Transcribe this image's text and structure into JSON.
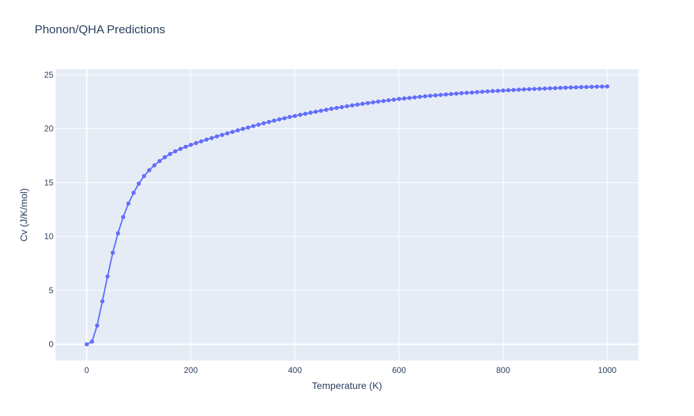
{
  "chart_data": {
    "type": "line",
    "title": "Phonon/QHA Predictions",
    "xlabel": "Temperature (K)",
    "ylabel": "Cv (J/K/mol)",
    "xlim": [
      -60,
      1060
    ],
    "ylim": [
      -1.5,
      25.5
    ],
    "x_ticks": [
      0,
      200,
      400,
      600,
      800,
      1000
    ],
    "y_ticks": [
      0,
      5,
      10,
      15,
      20,
      25
    ],
    "grid": true,
    "colors": {
      "series": "#636efa",
      "plot_bg": "#e5ecf6",
      "grid": "#ffffff",
      "text": "#2a3f5f"
    },
    "series": [
      {
        "mode": "lines+markers",
        "x": [
          0,
          10,
          20,
          30,
          40,
          50,
          60,
          70,
          80,
          90,
          100,
          110,
          120,
          130,
          140,
          150,
          160,
          170,
          180,
          190,
          200,
          210,
          220,
          230,
          240,
          250,
          260,
          270,
          280,
          290,
          300,
          310,
          320,
          330,
          340,
          350,
          360,
          370,
          380,
          390,
          400,
          410,
          420,
          430,
          440,
          450,
          460,
          470,
          480,
          490,
          500,
          510,
          520,
          530,
          540,
          550,
          560,
          570,
          580,
          590,
          600,
          610,
          620,
          630,
          640,
          650,
          660,
          670,
          680,
          690,
          700,
          710,
          720,
          730,
          740,
          750,
          760,
          770,
          780,
          790,
          800,
          810,
          820,
          830,
          840,
          850,
          860,
          870,
          880,
          890,
          900,
          910,
          920,
          930,
          940,
          950,
          960,
          970,
          980,
          990,
          1000
        ],
        "y": [
          0,
          0.25,
          1.75,
          4.0,
          6.3,
          8.5,
          10.3,
          11.8,
          13.05,
          14.05,
          14.9,
          15.6,
          16.15,
          16.6,
          17.0,
          17.35,
          17.65,
          17.9,
          18.12,
          18.32,
          18.5,
          18.66,
          18.82,
          18.98,
          19.13,
          19.28,
          19.42,
          19.56,
          19.7,
          19.84,
          19.98,
          20.11,
          20.24,
          20.37,
          20.5,
          20.62,
          20.74,
          20.86,
          20.97,
          21.08,
          21.18,
          21.28,
          21.38,
          21.48,
          21.57,
          21.66,
          21.75,
          21.84,
          21.92,
          22.0,
          22.08,
          22.16,
          22.23,
          22.3,
          22.37,
          22.44,
          22.51,
          22.57,
          22.63,
          22.69,
          22.75,
          22.8,
          22.85,
          22.9,
          22.95,
          23.0,
          23.05,
          23.09,
          23.13,
          23.17,
          23.21,
          23.25,
          23.29,
          23.32,
          23.35,
          23.39,
          23.42,
          23.45,
          23.48,
          23.51,
          23.54,
          23.56,
          23.59,
          23.61,
          23.64,
          23.66,
          23.68,
          23.7,
          23.72,
          23.74,
          23.76,
          23.78,
          23.8,
          23.82,
          23.83,
          23.85,
          23.86,
          23.88,
          23.89,
          23.9,
          23.92
        ]
      }
    ]
  }
}
